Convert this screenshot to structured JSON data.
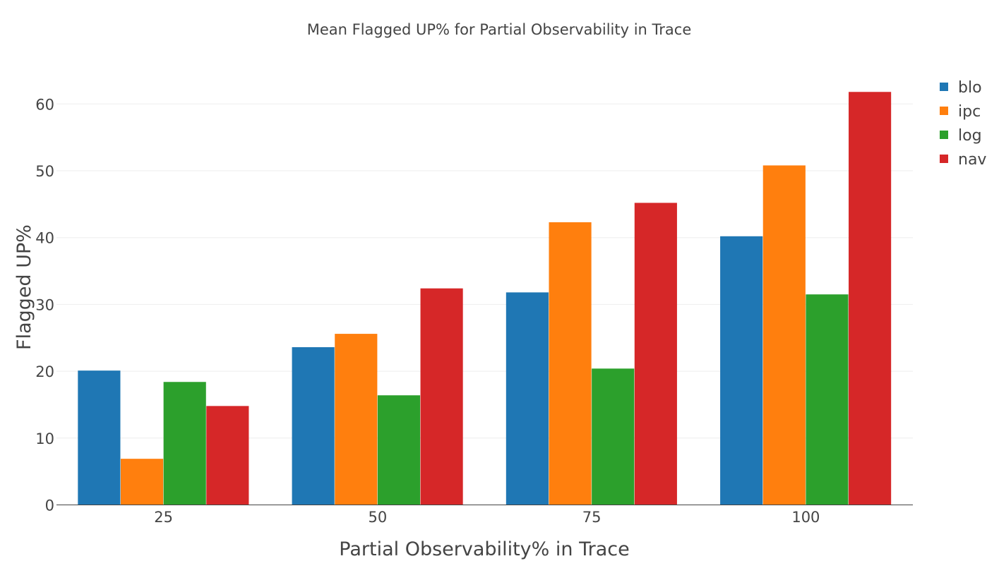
{
  "chart_data": {
    "type": "bar",
    "title": "Mean Flagged UP% for Partial Observability in Trace",
    "xlabel": "Partial Observability% in Trace",
    "ylabel": "Flagged UP%",
    "categories": [
      "25",
      "50",
      "75",
      "100"
    ],
    "yticks": [
      "0",
      "10",
      "20",
      "30",
      "40",
      "50",
      "60"
    ],
    "ylim": [
      0,
      65
    ],
    "grid": true,
    "legend_position": "top-right",
    "series": [
      {
        "name": "blo",
        "color": "#1f77b4",
        "values": [
          20.1,
          23.6,
          31.8,
          40.2
        ]
      },
      {
        "name": "ipc",
        "color": "#ff7f0e",
        "values": [
          6.9,
          25.6,
          42.3,
          50.8
        ]
      },
      {
        "name": "log",
        "color": "#2ca02c",
        "values": [
          18.4,
          16.4,
          20.4,
          31.5
        ]
      },
      {
        "name": "nav",
        "color": "#d62728",
        "values": [
          14.8,
          32.4,
          45.2,
          61.8
        ]
      }
    ]
  }
}
